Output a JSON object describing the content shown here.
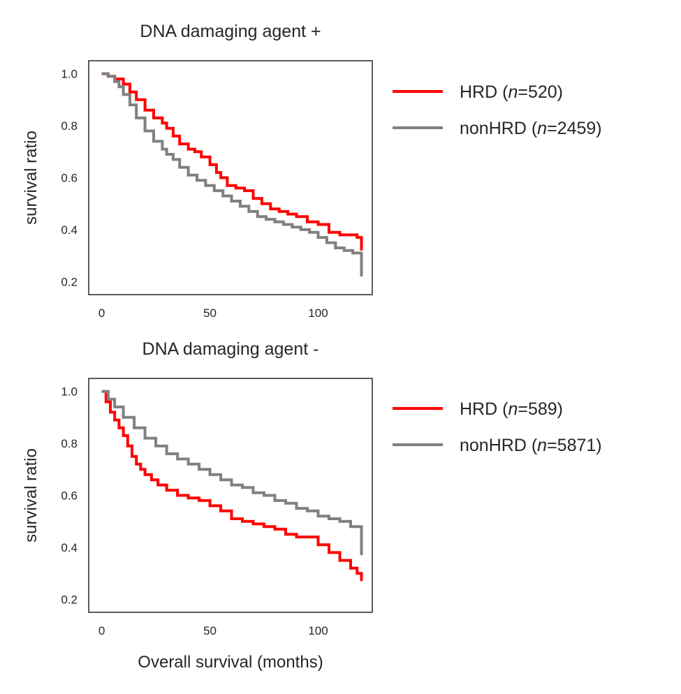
{
  "colors": {
    "HRD": "#ff0000",
    "nonHRD": "#808080"
  },
  "chart_data": [
    {
      "type": "line",
      "title": "DNA damaging agent +",
      "xlabel": "",
      "ylabel": "survival ratio",
      "xlim": [
        -6,
        125
      ],
      "ylim": [
        0.15,
        1.05
      ],
      "xticks": [
        0,
        50,
        100
      ],
      "yticks": [
        0.2,
        0.4,
        0.6,
        0.8,
        1.0
      ],
      "ytick_labels": [
        "0.2",
        "0.4",
        "0.6",
        "0.8",
        "1.0"
      ],
      "grid": false,
      "legend_position": "outside-right",
      "series": [
        {
          "name": "HRD (n=520)",
          "name_prefix": "HRD (",
          "name_italic": "n",
          "name_suffix": "=520)",
          "color": "#ff0000",
          "x": [
            0,
            3,
            6,
            10,
            13,
            16,
            20,
            24,
            28,
            30,
            33,
            36,
            40,
            43,
            46,
            50,
            53,
            55,
            58,
            62,
            66,
            70,
            74,
            78,
            82,
            86,
            90,
            95,
            100,
            105,
            110,
            115,
            118,
            120,
            120
          ],
          "y": [
            1.0,
            0.99,
            0.98,
            0.96,
            0.93,
            0.9,
            0.86,
            0.83,
            0.81,
            0.79,
            0.76,
            0.73,
            0.71,
            0.7,
            0.68,
            0.65,
            0.62,
            0.6,
            0.57,
            0.56,
            0.55,
            0.52,
            0.5,
            0.48,
            0.47,
            0.46,
            0.45,
            0.43,
            0.42,
            0.39,
            0.38,
            0.38,
            0.37,
            0.36,
            0.32
          ]
        },
        {
          "name": "nonHRD (n=2459)",
          "name_prefix": "nonHRD (",
          "name_italic": "n",
          "name_suffix": "=2459)",
          "color": "#808080",
          "x": [
            0,
            3,
            6,
            8,
            10,
            13,
            16,
            20,
            24,
            28,
            30,
            33,
            36,
            40,
            44,
            48,
            52,
            56,
            60,
            64,
            68,
            72,
            76,
            80,
            84,
            88,
            92,
            96,
            100,
            104,
            108,
            112,
            116,
            120,
            120
          ],
          "y": [
            1.0,
            0.99,
            0.97,
            0.95,
            0.92,
            0.88,
            0.83,
            0.78,
            0.74,
            0.71,
            0.69,
            0.67,
            0.64,
            0.61,
            0.59,
            0.57,
            0.55,
            0.53,
            0.51,
            0.49,
            0.47,
            0.45,
            0.44,
            0.43,
            0.42,
            0.41,
            0.4,
            0.39,
            0.37,
            0.35,
            0.33,
            0.32,
            0.31,
            0.3,
            0.22
          ]
        }
      ]
    },
    {
      "type": "line",
      "title": "DNA damaging agent -",
      "xlabel": "Overall survival (months)",
      "ylabel": "survival ratio",
      "xlim": [
        -6,
        125
      ],
      "ylim": [
        0.15,
        1.05
      ],
      "xticks": [
        0,
        50,
        100
      ],
      "yticks": [
        0.2,
        0.4,
        0.6,
        0.8,
        1.0
      ],
      "ytick_labels": [
        "0.2",
        "0.4",
        "0.6",
        "0.8",
        "1.0"
      ],
      "grid": false,
      "legend_position": "outside-right",
      "series": [
        {
          "name": "HRD (n=589)",
          "name_prefix": "HRD (",
          "name_italic": "n",
          "name_suffix": "=589)",
          "color": "#ff0000",
          "x": [
            0,
            2,
            4,
            6,
            8,
            10,
            12,
            14,
            16,
            18,
            20,
            23,
            26,
            30,
            35,
            40,
            45,
            50,
            55,
            60,
            65,
            70,
            75,
            80,
            85,
            90,
            95,
            100,
            105,
            110,
            115,
            118,
            120,
            120
          ],
          "y": [
            1.0,
            0.96,
            0.92,
            0.89,
            0.86,
            0.83,
            0.79,
            0.75,
            0.72,
            0.7,
            0.68,
            0.66,
            0.64,
            0.62,
            0.6,
            0.59,
            0.58,
            0.56,
            0.54,
            0.51,
            0.5,
            0.49,
            0.48,
            0.47,
            0.45,
            0.44,
            0.44,
            0.41,
            0.38,
            0.35,
            0.32,
            0.3,
            0.29,
            0.27
          ]
        },
        {
          "name": "nonHRD (n=5871)",
          "name_prefix": "nonHRD (",
          "name_italic": "n",
          "name_suffix": "=5871)",
          "color": "#808080",
          "x": [
            0,
            3,
            6,
            10,
            15,
            20,
            25,
            30,
            35,
            40,
            45,
            50,
            55,
            60,
            65,
            70,
            75,
            80,
            85,
            90,
            95,
            100,
            105,
            110,
            115,
            120,
            120
          ],
          "y": [
            1.0,
            0.97,
            0.94,
            0.9,
            0.86,
            0.82,
            0.79,
            0.76,
            0.74,
            0.72,
            0.7,
            0.68,
            0.66,
            0.64,
            0.63,
            0.61,
            0.6,
            0.58,
            0.57,
            0.55,
            0.54,
            0.52,
            0.51,
            0.5,
            0.48,
            0.47,
            0.37
          ]
        }
      ]
    }
  ]
}
